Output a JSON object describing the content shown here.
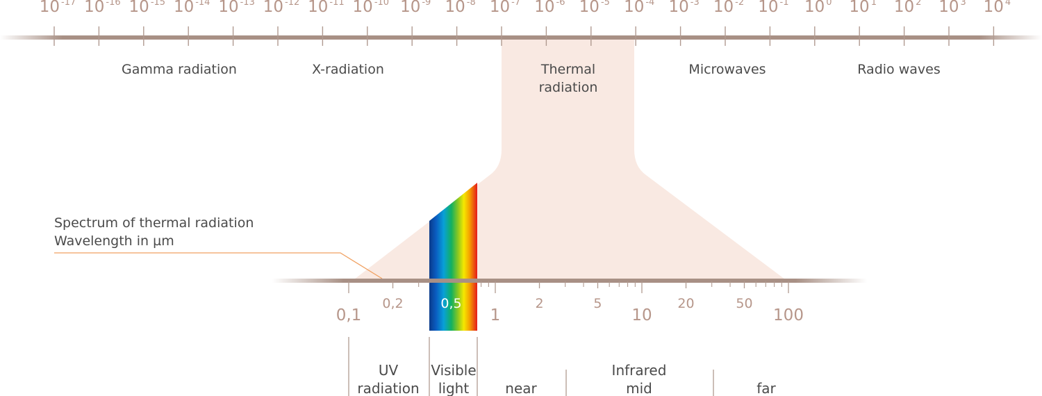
{
  "top_scale": {
    "base": "10",
    "exponents": [
      "-17",
      "-16",
      "-15",
      "-14",
      "-13",
      "-12",
      "-11",
      "-10",
      "-9",
      "-8",
      "-7",
      "-6",
      "-5",
      "-4",
      "-3",
      "-2",
      "-1",
      "0",
      "1",
      "2",
      "3",
      "4"
    ]
  },
  "top_bands": [
    {
      "line1": "Gamma radiation",
      "line2": ""
    },
    {
      "line1": "X-radiation",
      "line2": ""
    },
    {
      "line1": "Thermal",
      "line2": "radiation"
    },
    {
      "line1": "Microwaves",
      "line2": ""
    },
    {
      "line1": "Radio waves",
      "line2": ""
    }
  ],
  "caption": {
    "line1": "Spectrum of thermal radiation",
    "line2": "Wavelength in µm"
  },
  "bottom_scale": {
    "labels": [
      {
        "text": "0,1",
        "value": 0.1,
        "size": "large"
      },
      {
        "text": "0,2",
        "value": 0.2,
        "size": "small"
      },
      {
        "text": "0,5",
        "value": 0.5,
        "size": "small",
        "on_spectrum": true
      },
      {
        "text": "1",
        "value": 1,
        "size": "large"
      },
      {
        "text": "2",
        "value": 2,
        "size": "small"
      },
      {
        "text": "5",
        "value": 5,
        "size": "small"
      },
      {
        "text": "10",
        "value": 10,
        "size": "large"
      },
      {
        "text": "20",
        "value": 20,
        "size": "small"
      },
      {
        "text": "50",
        "value": 50,
        "size": "small"
      },
      {
        "text": "100",
        "value": 100,
        "size": "large"
      }
    ],
    "minor_ticks": [
      0.3,
      0.4,
      0.6,
      0.7,
      0.8,
      0.9,
      3,
      4,
      6,
      7,
      8,
      9,
      30,
      40,
      60,
      70,
      80,
      90
    ]
  },
  "sub_bands": [
    {
      "line1": "UV",
      "line2": "radiation"
    },
    {
      "line1": "Visible",
      "line2": "light"
    },
    {
      "line1": "",
      "line2": "near"
    },
    {
      "line1": "Infrared",
      "line2": "mid"
    },
    {
      "line1": "",
      "line2": "far"
    }
  ],
  "colors": {
    "axis": "#a89085",
    "tick_text": "#b6968a",
    "highlight": "#f9e9e2",
    "leader": "#f0a060",
    "text": "#4a4a4a"
  }
}
